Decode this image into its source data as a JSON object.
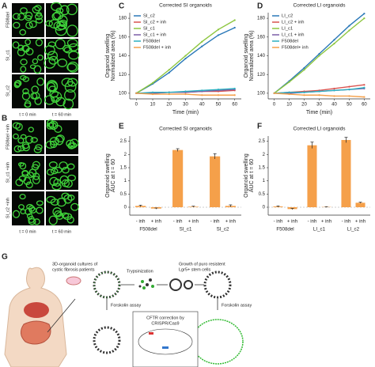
{
  "panel_labels": [
    "A",
    "B",
    "C",
    "D",
    "E",
    "F",
    "G"
  ],
  "micrographs": [
    {
      "rows": [
        "F508del",
        "SI_c1",
        "SI_c2"
      ],
      "columns": [
        "t = 0 min",
        "t = 60 min"
      ]
    },
    {
      "rows": [
        "F508del +inh",
        "SI_c1 +inh",
        "SI_c2 +inh"
      ],
      "columns": [
        "t = 0 min",
        "t = 60 min"
      ]
    }
  ],
  "chart_data": [
    {
      "type": "line",
      "title": "Corrected SI organoids",
      "xlabel": "Time (min)",
      "ylabel": [
        "Organoid swelling",
        "Normalized area (%)"
      ],
      "x": [
        0,
        10,
        20,
        30,
        40,
        50,
        60
      ],
      "xlim": [
        -4,
        64
      ],
      "xticks": [
        0,
        10,
        20,
        30,
        40,
        50,
        60
      ],
      "ylim": [
        94,
        186
      ],
      "yticks": [
        100,
        120,
        140,
        160,
        180
      ],
      "legend": "upper left",
      "series": [
        {
          "name": "SI_c2",
          "color": "#2a78b8",
          "values": [
            100,
            110,
            122,
            137,
            150,
            162,
            170
          ]
        },
        {
          "name": "SI_c2 + inh",
          "color": "#d9534f",
          "values": [
            100,
            100,
            101,
            101,
            102,
            102,
            103
          ]
        },
        {
          "name": "SI_c1",
          "color": "#8dc63f",
          "values": [
            100,
            111,
            125,
            140,
            155,
            168,
            178
          ]
        },
        {
          "name": "SI_c1 + inh",
          "color": "#7b5ea7",
          "values": [
            100,
            100,
            101,
            101,
            102,
            103,
            104
          ]
        },
        {
          "name": "F508del",
          "color": "#2bb0c0",
          "values": [
            100,
            101,
            101,
            102,
            103,
            104,
            105
          ]
        },
        {
          "name": "F508del + inh",
          "color": "#f5a04a",
          "values": [
            100,
            99,
            99,
            99,
            98,
            98,
            98
          ]
        }
      ]
    },
    {
      "type": "line",
      "title": "Corrected LI organoids",
      "xlabel": "Time (min)",
      "ylabel": [
        "Organoid swelling",
        "Normalized area (%)"
      ],
      "x": [
        0,
        10,
        20,
        30,
        40,
        50,
        60
      ],
      "xlim": [
        -4,
        64
      ],
      "xticks": [
        0,
        10,
        20,
        30,
        40,
        50,
        60
      ],
      "ylim": [
        94,
        186
      ],
      "yticks": [
        100,
        120,
        140,
        160,
        180
      ],
      "legend": "upper left",
      "series": [
        {
          "name": "LI_c2",
          "color": "#2a78b8",
          "values": [
            100,
            113,
            127,
            142,
            157,
            172,
            185
          ]
        },
        {
          "name": "LI_c2 + inh",
          "color": "#d9534f",
          "values": [
            100,
            101,
            102,
            103,
            105,
            107,
            109
          ]
        },
        {
          "name": "LI_c1",
          "color": "#8dc63f",
          "values": [
            100,
            112,
            125,
            140,
            153,
            167,
            180
          ]
        },
        {
          "name": "LI_c1 + inh",
          "color": "#7b5ea7",
          "values": [
            100,
            100,
            101,
            102,
            103,
            104,
            105
          ]
        },
        {
          "name": "F508del",
          "color": "#2bb0c0",
          "values": [
            100,
            101,
            101,
            102,
            103,
            104,
            106
          ]
        },
        {
          "name": "F508del+ inh",
          "color": "#f5a04a",
          "values": [
            100,
            99,
            98,
            98,
            97,
            97,
            96
          ]
        }
      ]
    },
    {
      "type": "bar",
      "title": "Corrected SI organoids",
      "ylabel": [
        "Organoid swelling",
        "AUC at t = 60"
      ],
      "categories": [
        "- inh",
        "+ inh",
        "- inh",
        "+ inh",
        "- inh",
        "+ inh"
      ],
      "groups": [
        "F508del",
        "SI_c1",
        "SI_c2"
      ],
      "values": [
        0.05,
        -0.05,
        2.17,
        0.02,
        1.93,
        0.05
      ],
      "errors": [
        0.03,
        0.02,
        0.05,
        0.02,
        0.1,
        0.04
      ],
      "color": "#f5a04a",
      "ylim": [
        -0.3,
        2.7
      ],
      "yticks": [
        0,
        0.5,
        1,
        1.5,
        2,
        2.5
      ]
    },
    {
      "type": "bar",
      "title": "Corrected LI organoids",
      "ylabel": [
        "Organoid swelling",
        "AUC at t = 60"
      ],
      "categories": [
        "- inh",
        "+ inh",
        "- inh",
        "+ inh",
        "- inh",
        "+ inh"
      ],
      "groups": [
        "F508del",
        "LI_c1",
        "LI_c2"
      ],
      "values": [
        0.03,
        -0.07,
        2.35,
        0.01,
        2.55,
        0.17
      ],
      "errors": [
        0.02,
        0.02,
        0.12,
        0.01,
        0.1,
        0.02
      ],
      "color": "#f5a04a",
      "ylim": [
        -0.3,
        2.7
      ],
      "yticks": [
        0,
        0.5,
        1,
        1.5,
        2,
        2.5
      ]
    }
  ],
  "diagram": {
    "culture": [
      "3D-organoid cultures of",
      "cystic fibrosis patients"
    ],
    "trypsin": "Trypsinization",
    "growth": [
      "Growth of puro resistent",
      "Lgr5+ stem cells"
    ],
    "forskolin_left": "Forskolin assay",
    "correction": [
      "CFTR correction by",
      "CRISPR/Cas9"
    ],
    "forskolin_right": "Forskolin assay"
  }
}
